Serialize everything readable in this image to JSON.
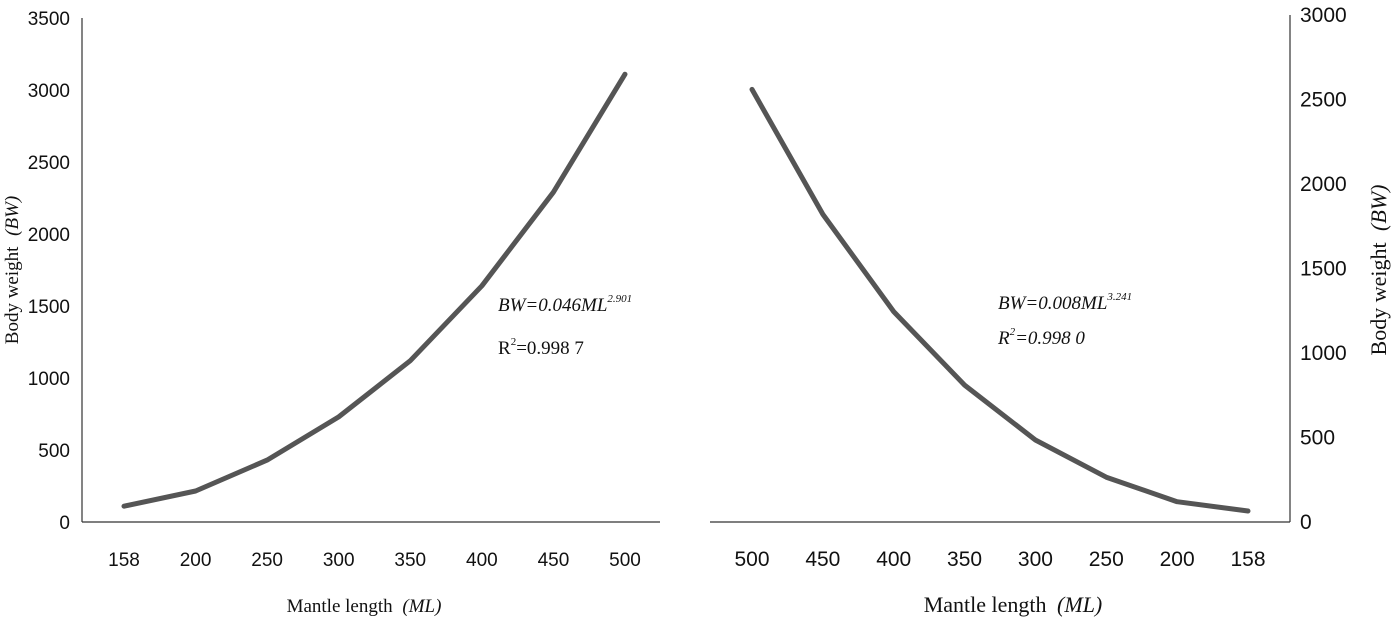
{
  "chart_data": [
    {
      "type": "line",
      "categories": [
        "158",
        "200",
        "250",
        "300",
        "350",
        "400",
        "450",
        "500"
      ],
      "values": [
        110,
        215,
        430,
        730,
        1120,
        1640,
        2290,
        3110
      ],
      "xlabel": "Mantle length",
      "xlabel_italic": "(ML)",
      "ylabel": "Body weight",
      "ylabel_italic": "(BW)",
      "ylim": [
        0,
        3500
      ],
      "yticks": [
        "0",
        "500",
        "1000",
        "1500",
        "2000",
        "2500",
        "3000",
        "3500"
      ],
      "y_axis_side": "left",
      "annotation": {
        "equation_lhs": "BW=0.046ML",
        "exponent": "2.901",
        "r2_label": "R",
        "r2_sup": "2",
        "r2_value": "=0.998 7"
      },
      "line_color": "#555555",
      "grid": false
    },
    {
      "type": "line",
      "categories": [
        "500",
        "450",
        "400",
        "350",
        "300",
        "250",
        "200",
        "158"
      ],
      "values": [
        2560,
        1820,
        1245,
        810,
        485,
        265,
        120,
        65
      ],
      "xlabel": "Mantle length",
      "xlabel_italic": "(ML)",
      "ylabel": "Body weight",
      "ylabel_italic": "(BW)",
      "ylim": [
        0,
        3000
      ],
      "yticks": [
        "0",
        "500",
        "1000",
        "1500",
        "2000",
        "2500",
        "3000"
      ],
      "y_axis_side": "right",
      "annotation": {
        "equation_lhs": "BW=0.008ML",
        "exponent": "3.241",
        "r2_label": "R",
        "r2_sup": "2",
        "r2_value": "=0.998 0"
      },
      "line_color": "#555555",
      "grid": false
    }
  ]
}
